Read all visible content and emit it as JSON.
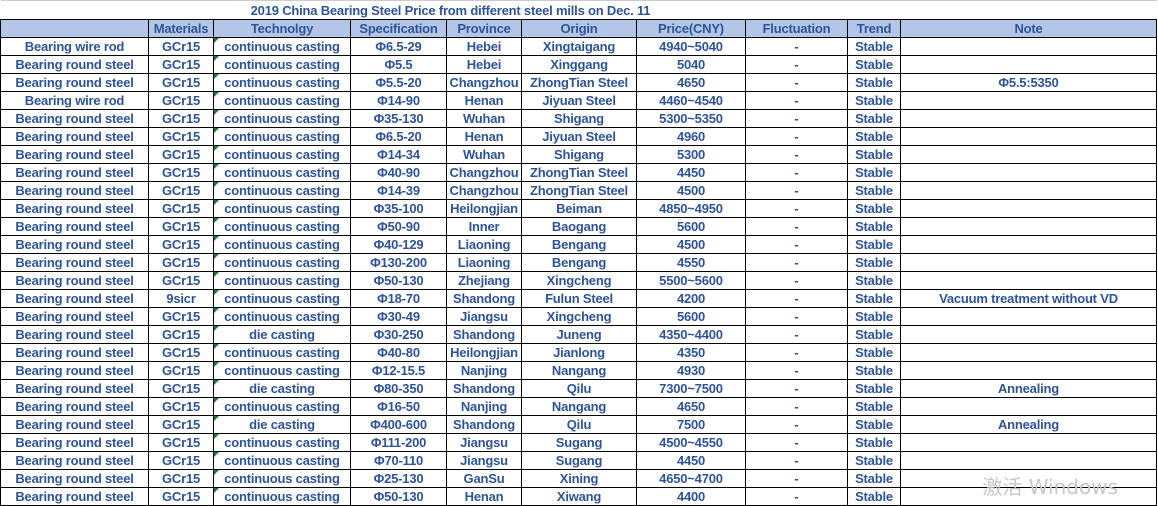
{
  "title": "2019 China Bearing Steel Price from different steel mills on Dec. 11",
  "headers": [
    "",
    "Materials",
    "Technolgy",
    "Specification",
    "Province",
    "Origin",
    "Price(CNY)",
    "Fluctuation",
    "Trend",
    "Note"
  ],
  "rows": [
    [
      "Bearing wire rod",
      "GCr15",
      "continuous casting",
      "Φ6.5-29",
      "Hebei",
      "Xingtaigang",
      "4940~5040",
      "-",
      "Stable",
      ""
    ],
    [
      "Bearing round steel",
      "GCr15",
      "continuous casting",
      "Φ5.5",
      "Hebei",
      "Xinggang",
      "5040",
      "-",
      "Stable",
      ""
    ],
    [
      "Bearing round steel",
      "GCr15",
      "continuous casting",
      "Φ5.5-20",
      "Changzhou",
      "ZhongTian Steel",
      "4650",
      "-",
      "Stable",
      "Φ5.5:5350"
    ],
    [
      "Bearing wire rod",
      "GCr15",
      "continuous casting",
      "Φ14-90",
      "Henan",
      "Jiyuan Steel",
      "4460~4540",
      "-",
      "Stable",
      ""
    ],
    [
      "Bearing round steel",
      "GCr15",
      "continuous casting",
      "Φ35-130",
      "Wuhan",
      "Shigang",
      "5300~5350",
      "-",
      "Stable",
      ""
    ],
    [
      "Bearing round steel",
      "GCr15",
      "continuous casting",
      "Φ6.5-20",
      "Henan",
      "Jiyuan Steel",
      "4960",
      "-",
      "Stable",
      ""
    ],
    [
      "Bearing round steel",
      "GCr15",
      "continuous casting",
      "Φ14-34",
      "Wuhan",
      "Shigang",
      "5300",
      "-",
      "Stable",
      ""
    ],
    [
      "Bearing round steel",
      "GCr15",
      "continuous casting",
      "Φ40-90",
      "Changzhou",
      "ZhongTian Steel",
      "4450",
      "-",
      "Stable",
      ""
    ],
    [
      "Bearing round steel",
      "GCr15",
      "continuous casting",
      "Φ14-39",
      "Changzhou",
      "ZhongTian Steel",
      "4500",
      "-",
      "Stable",
      ""
    ],
    [
      "Bearing round steel",
      "GCr15",
      "continuous casting",
      "Φ35-100",
      "Heilongjian",
      "Beiman",
      "4850~4950",
      "-",
      "Stable",
      ""
    ],
    [
      "Bearing round steel",
      "GCr15",
      "continuous casting",
      "Φ50-90",
      "Inner",
      "Baogang",
      "5600",
      "-",
      "Stable",
      ""
    ],
    [
      "Bearing round steel",
      "GCr15",
      "continuous casting",
      "Φ40-129",
      "Liaoning",
      "Bengang",
      "4500",
      "-",
      "Stable",
      ""
    ],
    [
      "Bearing round steel",
      "GCr15",
      "continuous casting",
      "Φ130-200",
      "Liaoning",
      "Bengang",
      "4550",
      "-",
      "Stable",
      ""
    ],
    [
      "Bearing round steel",
      "GCr15",
      "continuous casting",
      "Φ50-130",
      "Zhejiang",
      "Xingcheng",
      "5500~5600",
      "-",
      "Stable",
      ""
    ],
    [
      "Bearing round steel",
      "9sicr",
      "continuous casting",
      "Φ18-70",
      "Shandong",
      "Fulun Steel",
      "4200",
      "-",
      "Stable",
      "Vacuum treatment without VD"
    ],
    [
      "Bearing round steel",
      "GCr15",
      "continuous casting",
      "Φ30-49",
      "Jiangsu",
      "Xingcheng",
      "5600",
      "-",
      "Stable",
      ""
    ],
    [
      "Bearing round steel",
      "GCr15",
      "die casting",
      "Φ30-250",
      "Shandong",
      "Juneng",
      "4350~4400",
      "-",
      "Stable",
      ""
    ],
    [
      "Bearing round steel",
      "GCr15",
      "continuous casting",
      "Φ40-80",
      "Heilongjian",
      "Jianlong",
      "4350",
      "-",
      "Stable",
      ""
    ],
    [
      "Bearing round steel",
      "GCr15",
      "continuous casting",
      "Φ12-15.5",
      "Nanjing",
      "Nangang",
      "4930",
      "-",
      "Stable",
      ""
    ],
    [
      "Bearing round steel",
      "GCr15",
      "die casting",
      "Φ80-350",
      "Shandong",
      "Qilu",
      "7300~7500",
      "-",
      "Stable",
      "Annealing"
    ],
    [
      "Bearing round steel",
      "GCr15",
      "continuous casting",
      "Φ16-50",
      "Nanjing",
      "Nangang",
      "4650",
      "-",
      "Stable",
      ""
    ],
    [
      "Bearing round steel",
      "GCr15",
      "die casting",
      "Φ400-600",
      "Shandong",
      "Qilu",
      "7500",
      "-",
      "Stable",
      "Annealing"
    ],
    [
      "Bearing round steel",
      "GCr15",
      "continuous casting",
      "Φ111-200",
      "Jiangsu",
      "Sugang",
      "4500~4550",
      "-",
      "Stable",
      ""
    ],
    [
      "Bearing round steel",
      "GCr15",
      "continuous casting",
      "Φ70-110",
      "Jiangsu",
      "Sugang",
      "4450",
      "-",
      "Stable",
      ""
    ],
    [
      "Bearing round steel",
      "GCr15",
      "continuous casting",
      "Φ25-130",
      "GanSu",
      "Xining",
      "4650~4700",
      "-",
      "Stable",
      ""
    ],
    [
      "Bearing round steel",
      "GCr15",
      "continuous casting",
      "Φ50-130",
      "Henan",
      "Xiwang",
      "4400",
      "-",
      "Stable",
      ""
    ]
  ],
  "watermark": "激活 Windows"
}
